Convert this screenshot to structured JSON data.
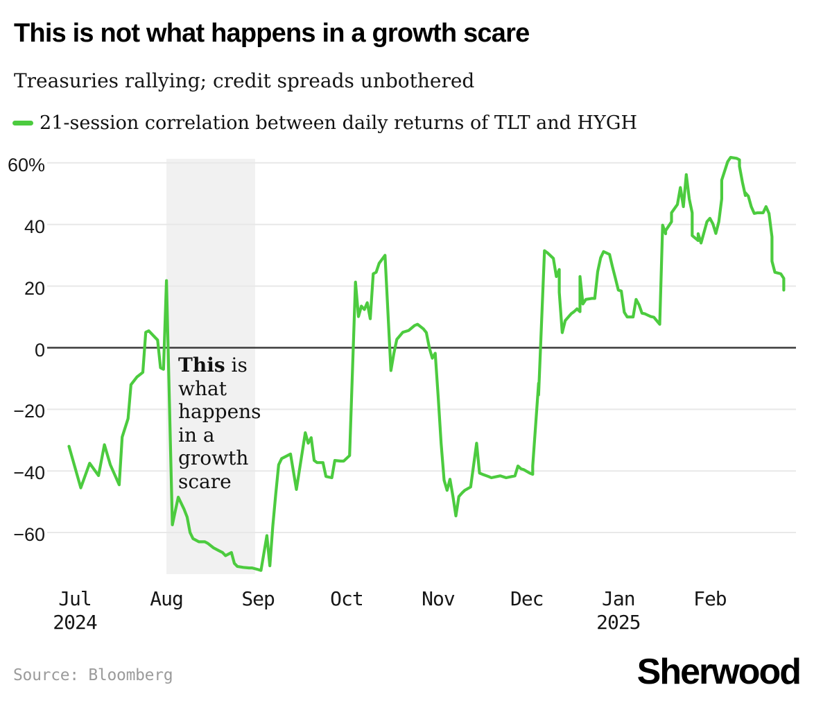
{
  "header": {
    "title": "This is not what happens in a growth scare",
    "subtitle": "Treasuries rallying; credit spreads unbothered"
  },
  "legend": {
    "label": "21-session correlation between daily returns of TLT and HYGH",
    "swatch_color": "#4ccb3f"
  },
  "annotation": {
    "bold": "This",
    "rest": " is what happens in a growth scare"
  },
  "footer": {
    "source": "Source: Bloomberg",
    "brand": "Sherwood"
  },
  "colors": {
    "line": "#4ccb3f",
    "shade": "#f1f1f1",
    "grid": "#e8e8e8",
    "zero_line": "#3a3a3a",
    "text": "#111111",
    "source_text": "#9b9b9b",
    "background": "#ffffff"
  },
  "chart_data": {
    "type": "line",
    "title": "This is not what happens in a growth scare",
    "subtitle": "Treasuries rallying; credit spreads unbothered",
    "unit": "%",
    "grid": true,
    "zero_line": true,
    "legend_position": "top-left",
    "ylim": [
      -75,
      65
    ],
    "yticks": [
      {
        "label": "60%",
        "value": 60
      },
      {
        "label": "40",
        "value": 40
      },
      {
        "label": "20",
        "value": 20
      },
      {
        "label": "0",
        "value": 0
      },
      {
        "label": "−20",
        "value": -20
      },
      {
        "label": "−40",
        "value": -40
      },
      {
        "label": "−60",
        "value": -60
      }
    ],
    "xticks": [
      {
        "label": "Jul",
        "date": "2024-07-01",
        "year": "2024"
      },
      {
        "label": "Aug",
        "date": "2024-08-01"
      },
      {
        "label": "Sep",
        "date": "2024-09-01"
      },
      {
        "label": "Oct",
        "date": "2024-10-01"
      },
      {
        "label": "Nov",
        "date": "2024-11-01"
      },
      {
        "label": "Dec",
        "date": "2024-12-01"
      },
      {
        "label": "Jan",
        "date": "2025-01-01",
        "year": "2025"
      },
      {
        "label": "Feb",
        "date": "2025-02-01"
      }
    ],
    "highlight_region": {
      "from": "2024-08-01",
      "to": "2024-08-31",
      "color": "#f1f1f1",
      "annotation": "This is what happens in a growth scare"
    },
    "source": "Bloomberg",
    "series": [
      {
        "name": "21-session correlation between daily returns of TLT and HYGH",
        "color": "#4ccb3f",
        "points": [
          [
            "2024-06-29",
            -32
          ],
          [
            "2024-07-03",
            -45.5
          ],
          [
            "2024-07-06",
            -37.5
          ],
          [
            "2024-07-09",
            -41.5
          ],
          [
            "2024-07-11",
            -31.5
          ],
          [
            "2024-07-13",
            -38
          ],
          [
            "2024-07-16",
            -44.5
          ],
          [
            "2024-07-17",
            -29
          ],
          [
            "2024-07-19",
            -23
          ],
          [
            "2024-07-20",
            -12
          ],
          [
            "2024-07-22",
            -9.5
          ],
          [
            "2024-07-24",
            -8
          ],
          [
            "2024-07-25",
            5
          ],
          [
            "2024-07-26",
            5.5
          ],
          [
            "2024-07-28",
            3.5
          ],
          [
            "2024-07-29",
            2.5
          ],
          [
            "2024-07-30",
            -6.5
          ],
          [
            "2024-07-31",
            -7
          ],
          [
            "2024-08-01",
            21.8
          ],
          [
            "2024-08-03",
            -57.5
          ],
          [
            "2024-08-04",
            -53
          ],
          [
            "2024-08-05",
            -48.5
          ],
          [
            "2024-08-07",
            -52.5
          ],
          [
            "2024-08-08",
            -55
          ],
          [
            "2024-08-09",
            -60
          ],
          [
            "2024-08-10",
            -62
          ],
          [
            "2024-08-12",
            -63
          ],
          [
            "2024-08-14",
            -63
          ],
          [
            "2024-08-15",
            -63.5
          ],
          [
            "2024-08-17",
            -65
          ],
          [
            "2024-08-19",
            -66
          ],
          [
            "2024-08-20",
            -66.5
          ],
          [
            "2024-08-21",
            -67.5
          ],
          [
            "2024-08-23",
            -66.5
          ],
          [
            "2024-08-24",
            -70
          ],
          [
            "2024-08-25",
            -71
          ],
          [
            "2024-08-27",
            -71.3
          ],
          [
            "2024-08-29",
            -71.5
          ],
          [
            "2024-08-30",
            -71.5
          ],
          [
            "2024-09-01",
            -72
          ],
          [
            "2024-09-02",
            -72.3
          ],
          [
            "2024-09-04",
            -61
          ],
          [
            "2024-09-05",
            -70.8
          ],
          [
            "2024-09-06",
            -58
          ],
          [
            "2024-09-07",
            -47.5
          ],
          [
            "2024-09-08",
            -38
          ],
          [
            "2024-09-09",
            -36
          ],
          [
            "2024-09-11",
            -35
          ],
          [
            "2024-09-12",
            -34.5
          ],
          [
            "2024-09-14",
            -46
          ],
          [
            "2024-09-17",
            -27.6
          ],
          [
            "2024-09-18",
            -31
          ],
          [
            "2024-09-19",
            -29.2
          ],
          [
            "2024-09-20",
            -36.6
          ],
          [
            "2024-09-21",
            -37.3
          ],
          [
            "2024-09-23",
            -37.3
          ],
          [
            "2024-09-24",
            -41.8
          ],
          [
            "2024-09-26",
            -42.2
          ],
          [
            "2024-09-27",
            -36.6
          ],
          [
            "2024-09-29",
            -36.8
          ],
          [
            "2024-09-30",
            -36.8
          ],
          [
            "2024-10-02",
            -35
          ],
          [
            "2024-10-04",
            21.3
          ],
          [
            "2024-10-05",
            10.1
          ],
          [
            "2024-10-06",
            13.5
          ],
          [
            "2024-10-07",
            12.4
          ],
          [
            "2024-10-08",
            14.6
          ],
          [
            "2024-10-09",
            9.4
          ],
          [
            "2024-10-10",
            24
          ],
          [
            "2024-10-11",
            24.5
          ],
          [
            "2024-10-12",
            27.4
          ],
          [
            "2024-10-14",
            30
          ],
          [
            "2024-10-16",
            -7.4
          ],
          [
            "2024-10-17",
            -1.8
          ],
          [
            "2024-10-18",
            2.7
          ],
          [
            "2024-10-20",
            5
          ],
          [
            "2024-10-22",
            5.6
          ],
          [
            "2024-10-24",
            7.2
          ],
          [
            "2024-10-25",
            7.6
          ],
          [
            "2024-10-27",
            6.1
          ],
          [
            "2024-10-28",
            4.9
          ],
          [
            "2024-10-29",
            0
          ],
          [
            "2024-10-30",
            -3.4
          ],
          [
            "2024-10-31",
            -1.8
          ],
          [
            "2024-11-01",
            -16
          ],
          [
            "2024-11-02",
            -31
          ],
          [
            "2024-11-03",
            -43
          ],
          [
            "2024-11-04",
            -46.3
          ],
          [
            "2024-11-05",
            -42.7
          ],
          [
            "2024-11-06",
            -48.3
          ],
          [
            "2024-11-07",
            -54.6
          ],
          [
            "2024-11-08",
            -48.3
          ],
          [
            "2024-11-09",
            -47.2
          ],
          [
            "2024-11-10",
            -46.3
          ],
          [
            "2024-11-12",
            -45.2
          ],
          [
            "2024-11-14",
            -31
          ],
          [
            "2024-11-15",
            -40.7
          ],
          [
            "2024-11-16",
            -41.1
          ],
          [
            "2024-11-18",
            -41.8
          ],
          [
            "2024-11-19",
            -42.2
          ],
          [
            "2024-11-21",
            -41.8
          ],
          [
            "2024-11-22",
            -41.6
          ],
          [
            "2024-11-24",
            -42.2
          ],
          [
            "2024-11-26",
            -41.8
          ],
          [
            "2024-11-27",
            -41.6
          ],
          [
            "2024-11-28",
            -38.4
          ],
          [
            "2024-11-29",
            -39.3
          ],
          [
            "2024-11-30",
            -39.6
          ],
          [
            "2024-12-02",
            -40.7
          ],
          [
            "2024-12-03",
            -41.1
          ],
          [
            "2024-12-03",
            -38.4
          ],
          [
            "2024-12-04",
            -24.9
          ],
          [
            "2024-12-05",
            -11.5
          ],
          [
            "2024-12-05",
            -15.3
          ],
          [
            "2024-12-07",
            31.5
          ],
          [
            "2024-12-08",
            30.8
          ],
          [
            "2024-12-10",
            29
          ],
          [
            "2024-12-11",
            23.1
          ],
          [
            "2024-12-12",
            25.4
          ],
          [
            "2024-12-12",
            18
          ],
          [
            "2024-12-13",
            4.9
          ],
          [
            "2024-12-14",
            8.8
          ],
          [
            "2024-12-16",
            11
          ],
          [
            "2024-12-17",
            11.7
          ],
          [
            "2024-12-18",
            12.6
          ],
          [
            "2024-12-19",
            11.7
          ],
          [
            "2024-12-19",
            23.1
          ],
          [
            "2024-12-20",
            14.2
          ],
          [
            "2024-12-21",
            15.7
          ],
          [
            "2024-12-23",
            16
          ],
          [
            "2024-12-24",
            16
          ],
          [
            "2024-12-25",
            24.7
          ],
          [
            "2024-12-26",
            29.2
          ],
          [
            "2024-12-27",
            31.2
          ],
          [
            "2024-12-29",
            30.3
          ],
          [
            "2024-12-30",
            26.3
          ],
          [
            "2024-12-31",
            22.5
          ],
          [
            "2025-01-01",
            18.7
          ],
          [
            "2025-01-02",
            18.4
          ],
          [
            "2025-01-03",
            11.5
          ],
          [
            "2025-01-04",
            10
          ],
          [
            "2025-01-06",
            10
          ],
          [
            "2025-01-07",
            15.7
          ],
          [
            "2025-01-08",
            13.9
          ],
          [
            "2025-01-09",
            11.2
          ],
          [
            "2025-01-10",
            11
          ],
          [
            "2025-01-12",
            10.1
          ],
          [
            "2025-01-13",
            9.9
          ],
          [
            "2025-01-15",
            7.6
          ],
          [
            "2025-01-16",
            39.8
          ],
          [
            "2025-01-17",
            37
          ],
          [
            "2025-01-17",
            38
          ],
          [
            "2025-01-19",
            40.9
          ],
          [
            "2025-01-19",
            43.8
          ],
          [
            "2025-01-21",
            46.5
          ],
          [
            "2025-01-22",
            52
          ],
          [
            "2025-01-23",
            45.8
          ],
          [
            "2025-01-24",
            56.2
          ],
          [
            "2025-01-25",
            48.3
          ],
          [
            "2025-01-26",
            43.8
          ],
          [
            "2025-01-26",
            36.4
          ],
          [
            "2025-01-28",
            34.8
          ],
          [
            "2025-01-28",
            37
          ],
          [
            "2025-01-29",
            34
          ],
          [
            "2025-01-31",
            40.9
          ],
          [
            "2025-02-01",
            42
          ],
          [
            "2025-02-02",
            40.2
          ],
          [
            "2025-02-03",
            37.1
          ],
          [
            "2025-02-04",
            40.9
          ],
          [
            "2025-02-05",
            48.3
          ],
          [
            "2025-02-05",
            54.4
          ],
          [
            "2025-02-07",
            60.4
          ],
          [
            "2025-02-08",
            61.8
          ],
          [
            "2025-02-10",
            61.5
          ],
          [
            "2025-02-11",
            61
          ],
          [
            "2025-02-11",
            58.9
          ],
          [
            "2025-02-12",
            53.7
          ],
          [
            "2025-02-13",
            49.4
          ],
          [
            "2025-02-13",
            50.3
          ],
          [
            "2025-02-14",
            49.2
          ],
          [
            "2025-02-15",
            45.8
          ],
          [
            "2025-02-16",
            43.6
          ],
          [
            "2025-02-17",
            43.8
          ],
          [
            "2025-02-18",
            43.8
          ],
          [
            "2025-02-19",
            43.8
          ],
          [
            "2025-02-20",
            45.8
          ],
          [
            "2025-02-21",
            43.6
          ],
          [
            "2025-02-22",
            36
          ],
          [
            "2025-02-22",
            28.1
          ],
          [
            "2025-02-23",
            24.5
          ],
          [
            "2025-02-25",
            24
          ],
          [
            "2025-02-26",
            22.5
          ],
          [
            "2025-02-26",
            18.7
          ]
        ]
      }
    ]
  }
}
